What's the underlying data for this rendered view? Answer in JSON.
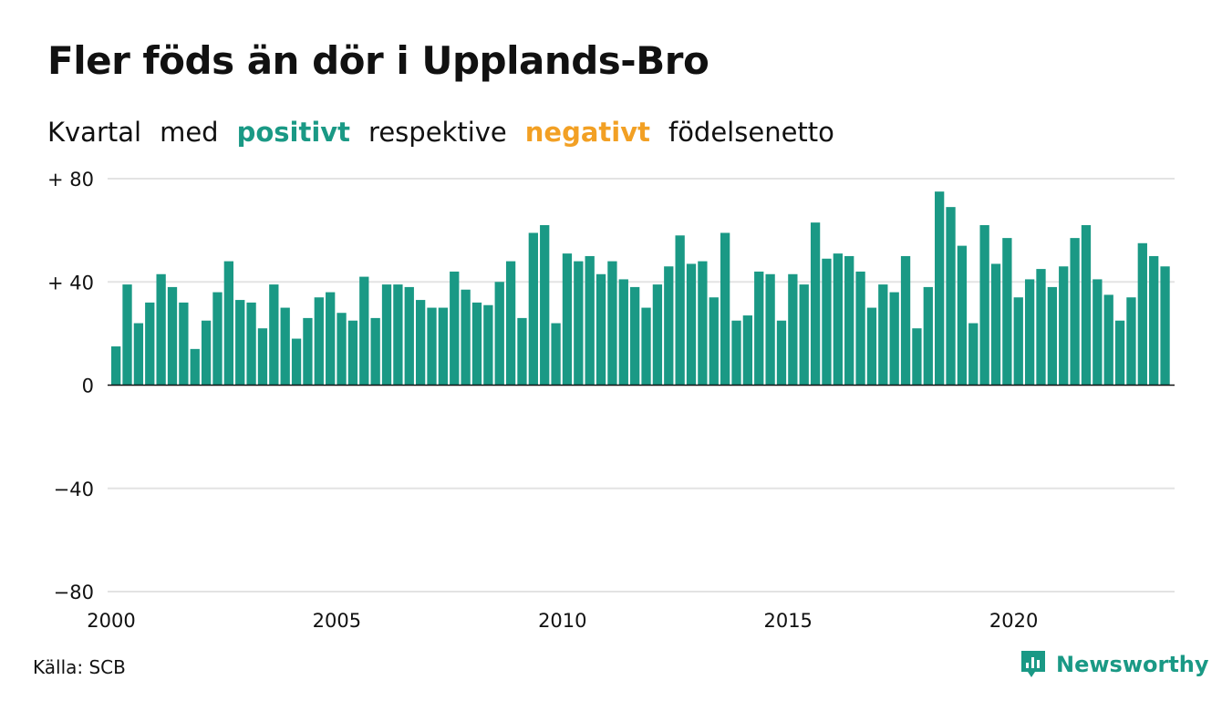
{
  "title": "Fler föds än dör i Upplands-Bro",
  "subtitle": {
    "w1": "Kvartal",
    "w2": "med",
    "positive": "positivt",
    "w3": "respektive",
    "negative": "negativt",
    "w4": "födelsenetto"
  },
  "colors": {
    "positive": "#1a9985",
    "negative": "#f2a024",
    "gridline": "#e3e3e3",
    "axis": "#111111"
  },
  "source": "Källa: SCB",
  "brand": {
    "name": "Newsworthy",
    "icon": "newsworthy-logo-icon",
    "color": "#1a9985"
  },
  "chart_data": {
    "type": "bar",
    "x_start": "2000",
    "period": "quarter",
    "ylim": [
      -80,
      80
    ],
    "y_ticks": [
      {
        "value": 80,
        "label": "+ 80"
      },
      {
        "value": 40,
        "label": "+ 40"
      },
      {
        "value": 0,
        "label": "0"
      },
      {
        "value": -40,
        "label": "−40"
      },
      {
        "value": -80,
        "label": "−80"
      }
    ],
    "x_ticks": [
      "2000",
      "2005",
      "2010",
      "2015",
      "2020"
    ],
    "values": [
      15,
      39,
      24,
      32,
      43,
      38,
      32,
      14,
      25,
      36,
      48,
      33,
      32,
      22,
      39,
      30,
      18,
      26,
      34,
      36,
      28,
      25,
      42,
      26,
      39,
      39,
      38,
      33,
      30,
      30,
      44,
      37,
      32,
      31,
      40,
      48,
      26,
      59,
      62,
      24,
      51,
      48,
      50,
      43,
      48,
      41,
      38,
      30,
      39,
      46,
      58,
      47,
      48,
      34,
      59,
      25,
      27,
      44,
      43,
      25,
      43,
      39,
      63,
      49,
      51,
      50,
      44,
      30,
      39,
      36,
      50,
      22,
      38,
      75,
      69,
      54,
      24,
      62,
      47,
      57,
      34,
      41,
      45,
      38,
      46,
      57,
      62,
      41,
      35,
      25,
      34,
      55,
      50,
      46
    ],
    "grid": true,
    "legend": "none"
  }
}
